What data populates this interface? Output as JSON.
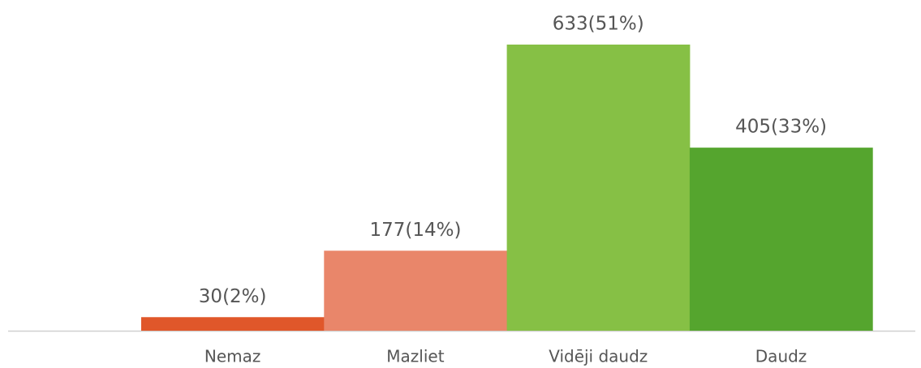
{
  "chart_data": {
    "type": "bar",
    "categories": [
      "Nemaz",
      "Mazliet",
      "Vidēji daudz",
      "Daudz"
    ],
    "values": [
      30,
      177,
      633,
      405
    ],
    "value_labels": [
      "30(2%)",
      "177(14%)",
      "633(51%)",
      "405(33%)"
    ],
    "colors": [
      "#e0572a",
      "#e9866a",
      "#86c045",
      "#55a52e"
    ]
  }
}
